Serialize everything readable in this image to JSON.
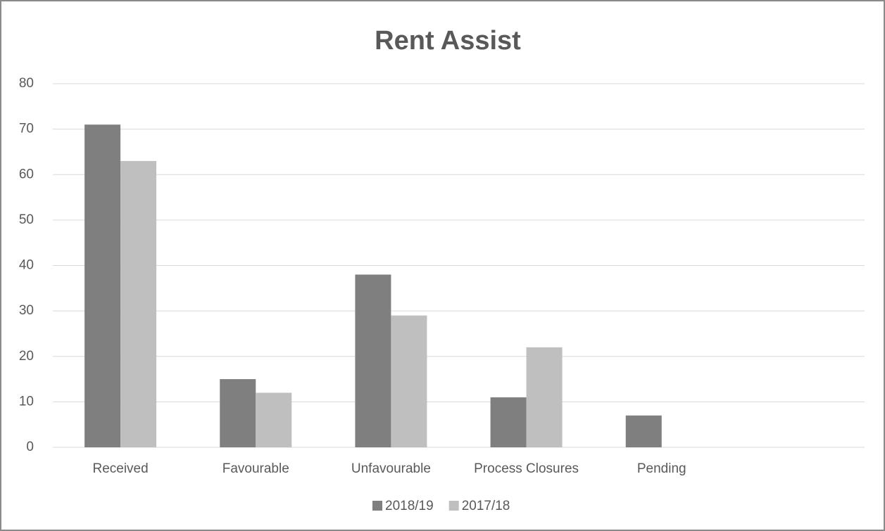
{
  "chart_data": {
    "type": "bar",
    "title": "Rent Assist",
    "categories": [
      "Received",
      "Favourable",
      "Unfavourable",
      "Process Closures",
      "Pending",
      null
    ],
    "series": [
      {
        "name": "2018/19",
        "color": "#7f7f7f",
        "values": [
          71,
          15,
          38,
          11,
          7,
          null
        ]
      },
      {
        "name": "2017/18",
        "color": "#bfbfbf",
        "values": [
          63,
          12,
          29,
          22,
          0,
          null
        ]
      }
    ],
    "ylim": [
      0,
      80
    ],
    "yticks": [
      0,
      10,
      20,
      30,
      40,
      50,
      60,
      70,
      80
    ],
    "grid": true,
    "legend": "bottom"
  }
}
